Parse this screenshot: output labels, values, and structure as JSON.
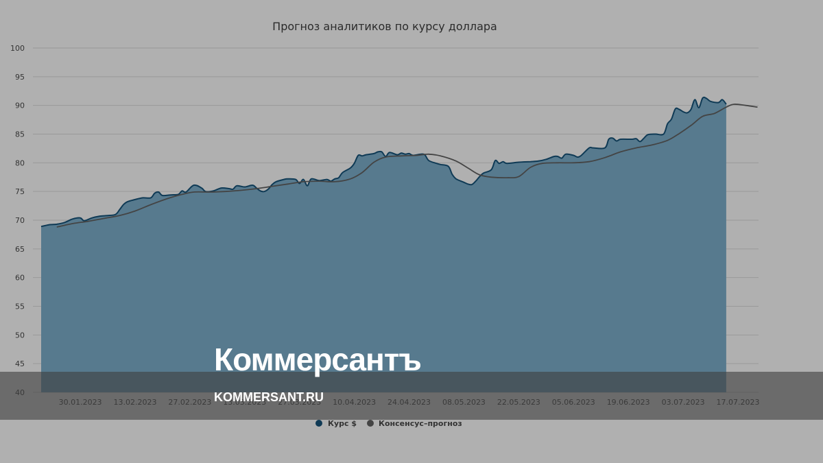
{
  "colors": {
    "background": "#b0b0b0",
    "area_fill": "#577a8e",
    "area_line": "#0f3a55",
    "consensus_line": "#444444",
    "grid": "#999999",
    "watermark_band": "#3d3d3d"
  },
  "watermark": {
    "logo_text": "Коммерсантъ",
    "site_text": "KOMMERSANT.RU"
  },
  "chart_data": {
    "type": "area",
    "title": "Прогноз аналитиков по курсу доллара",
    "xlabel": "",
    "ylabel": "",
    "ylim": [
      40,
      100
    ],
    "yticks": [
      40,
      45,
      50,
      55,
      60,
      65,
      70,
      75,
      80,
      85,
      90,
      95,
      100
    ],
    "grid": true,
    "legend_position": "bottom-center",
    "x_ticks": [
      "30.01.2023",
      "13.02.2023",
      "27.02.2023",
      "13.03.2023",
      "27.03.2023",
      "10.04.2023",
      "24.04.2023",
      "08.05.2023",
      "22.05.2023",
      "05.06.2023",
      "19.06.2023",
      "03.07.2023",
      "17.07.2023"
    ],
    "series": [
      {
        "name": "Курс $",
        "type": "area",
        "color": "#0f3a55",
        "points": [
          [
            "2023-01-20",
            68.9
          ],
          [
            "2023-01-22",
            69.2
          ],
          [
            "2023-01-24",
            69.3
          ],
          [
            "2023-01-26",
            69.6
          ],
          [
            "2023-01-28",
            70.2
          ],
          [
            "2023-01-30",
            70.4
          ],
          [
            "2023-01-31",
            69.9
          ],
          [
            "2023-02-02",
            70.4
          ],
          [
            "2023-02-04",
            70.7
          ],
          [
            "2023-02-06",
            70.8
          ],
          [
            "2023-02-08",
            71.0
          ],
          [
            "2023-02-09",
            71.8
          ],
          [
            "2023-02-10",
            72.7
          ],
          [
            "2023-02-11",
            73.2
          ],
          [
            "2023-02-13",
            73.6
          ],
          [
            "2023-02-15",
            73.9
          ],
          [
            "2023-02-17",
            73.9
          ],
          [
            "2023-02-18",
            74.7
          ],
          [
            "2023-02-19",
            74.9
          ],
          [
            "2023-02-20",
            74.3
          ],
          [
            "2023-02-22",
            74.4
          ],
          [
            "2023-02-24",
            74.5
          ],
          [
            "2023-02-25",
            75.1
          ],
          [
            "2023-02-26",
            74.9
          ],
          [
            "2023-02-28",
            76.1
          ],
          [
            "2023-03-02",
            75.6
          ],
          [
            "2023-03-03",
            75.0
          ],
          [
            "2023-03-05",
            75.1
          ],
          [
            "2023-03-07",
            75.6
          ],
          [
            "2023-03-09",
            75.5
          ],
          [
            "2023-03-10",
            75.4
          ],
          [
            "2023-03-11",
            76.0
          ],
          [
            "2023-03-13",
            75.8
          ],
          [
            "2023-03-15",
            76.1
          ],
          [
            "2023-03-16",
            75.6
          ],
          [
            "2023-03-17",
            75.1
          ],
          [
            "2023-03-18",
            75.0
          ],
          [
            "2023-03-19",
            75.4
          ],
          [
            "2023-03-20",
            76.2
          ],
          [
            "2023-03-21",
            76.7
          ],
          [
            "2023-03-23",
            77.1
          ],
          [
            "2023-03-24",
            77.2
          ],
          [
            "2023-03-26",
            77.1
          ],
          [
            "2023-03-27",
            76.4
          ],
          [
            "2023-03-28",
            77.1
          ],
          [
            "2023-03-29",
            76.0
          ],
          [
            "2023-03-30",
            77.2
          ],
          [
            "2023-04-01",
            76.9
          ],
          [
            "2023-04-03",
            77.1
          ],
          [
            "2023-04-04",
            76.8
          ],
          [
            "2023-04-05",
            77.2
          ],
          [
            "2023-04-06",
            77.4
          ],
          [
            "2023-04-07",
            78.3
          ],
          [
            "2023-04-09",
            79.1
          ],
          [
            "2023-04-10",
            79.9
          ],
          [
            "2023-04-11",
            81.3
          ],
          [
            "2023-04-12",
            81.2
          ],
          [
            "2023-04-13",
            81.4
          ],
          [
            "2023-04-15",
            81.6
          ],
          [
            "2023-04-16",
            81.9
          ],
          [
            "2023-04-17",
            81.9
          ],
          [
            "2023-04-18",
            81.1
          ],
          [
            "2023-04-19",
            81.8
          ],
          [
            "2023-04-21",
            81.4
          ],
          [
            "2023-04-22",
            81.7
          ],
          [
            "2023-04-23",
            81.5
          ],
          [
            "2023-04-24",
            81.6
          ],
          [
            "2023-04-25",
            81.3
          ],
          [
            "2023-04-27",
            81.5
          ],
          [
            "2023-04-28",
            81.4
          ],
          [
            "2023-04-29",
            80.4
          ],
          [
            "2023-05-01",
            79.9
          ],
          [
            "2023-05-02",
            79.7
          ],
          [
            "2023-05-04",
            79.4
          ],
          [
            "2023-05-05",
            78.0
          ],
          [
            "2023-05-06",
            77.2
          ],
          [
            "2023-05-08",
            76.6
          ],
          [
            "2023-05-09",
            76.3
          ],
          [
            "2023-05-10",
            76.2
          ],
          [
            "2023-05-11",
            76.8
          ],
          [
            "2023-05-12",
            77.6
          ],
          [
            "2023-05-13",
            78.2
          ],
          [
            "2023-05-15",
            78.8
          ],
          [
            "2023-05-16",
            80.4
          ],
          [
            "2023-05-17",
            79.9
          ],
          [
            "2023-05-18",
            80.2
          ],
          [
            "2023-05-19",
            79.9
          ],
          [
            "2023-05-22",
            80.1
          ],
          [
            "2023-05-25",
            80.2
          ],
          [
            "2023-05-27",
            80.3
          ],
          [
            "2023-05-29",
            80.6
          ],
          [
            "2023-05-31",
            81.1
          ],
          [
            "2023-06-01",
            81.1
          ],
          [
            "2023-06-02",
            80.8
          ],
          [
            "2023-06-03",
            81.5
          ],
          [
            "2023-06-05",
            81.3
          ],
          [
            "2023-06-06",
            81.0
          ],
          [
            "2023-06-07",
            81.3
          ],
          [
            "2023-06-09",
            82.6
          ],
          [
            "2023-06-10",
            82.6
          ],
          [
            "2023-06-13",
            82.6
          ],
          [
            "2023-06-14",
            84.1
          ],
          [
            "2023-06-15",
            84.3
          ],
          [
            "2023-06-16",
            83.8
          ],
          [
            "2023-06-17",
            84.1
          ],
          [
            "2023-06-20",
            84.1
          ],
          [
            "2023-06-21",
            84.2
          ],
          [
            "2023-06-22",
            83.7
          ],
          [
            "2023-06-23",
            84.3
          ],
          [
            "2023-06-24",
            84.9
          ],
          [
            "2023-06-26",
            85.0
          ],
          [
            "2023-06-28",
            85.0
          ],
          [
            "2023-06-29",
            86.8
          ],
          [
            "2023-06-30",
            87.6
          ],
          [
            "2023-07-01",
            89.4
          ],
          [
            "2023-07-02",
            89.3
          ],
          [
            "2023-07-03",
            88.9
          ],
          [
            "2023-07-04",
            88.7
          ],
          [
            "2023-07-05",
            89.3
          ],
          [
            "2023-07-06",
            91.0
          ],
          [
            "2023-07-07",
            89.6
          ],
          [
            "2023-07-08",
            91.3
          ],
          [
            "2023-07-09",
            91.2
          ],
          [
            "2023-07-10",
            90.7
          ],
          [
            "2023-07-12",
            90.5
          ],
          [
            "2023-07-13",
            91.0
          ],
          [
            "2023-07-14",
            90.2
          ]
        ]
      },
      {
        "name": "Консенсус–прогноз",
        "type": "line",
        "color": "#444444",
        "points": [
          [
            "2023-01-24",
            68.8
          ],
          [
            "2023-01-28",
            69.4
          ],
          [
            "2023-02-01",
            69.8
          ],
          [
            "2023-02-05",
            70.3
          ],
          [
            "2023-02-09",
            70.8
          ],
          [
            "2023-02-13",
            71.6
          ],
          [
            "2023-02-17",
            72.7
          ],
          [
            "2023-02-21",
            73.7
          ],
          [
            "2023-02-25",
            74.5
          ],
          [
            "2023-02-28",
            74.9
          ],
          [
            "2023-03-04",
            74.9
          ],
          [
            "2023-03-08",
            75.0
          ],
          [
            "2023-03-12",
            75.2
          ],
          [
            "2023-03-16",
            75.5
          ],
          [
            "2023-03-20",
            75.9
          ],
          [
            "2023-03-24",
            76.3
          ],
          [
            "2023-03-28",
            76.7
          ],
          [
            "2023-04-01",
            76.8
          ],
          [
            "2023-04-05",
            76.7
          ],
          [
            "2023-04-09",
            77.2
          ],
          [
            "2023-04-12",
            78.3
          ],
          [
            "2023-04-15",
            80.1
          ],
          [
            "2023-04-18",
            81.0
          ],
          [
            "2023-04-22",
            81.2
          ],
          [
            "2023-04-26",
            81.3
          ],
          [
            "2023-04-29",
            81.5
          ],
          [
            "2023-05-02",
            81.2
          ],
          [
            "2023-05-06",
            80.3
          ],
          [
            "2023-05-09",
            79.1
          ],
          [
            "2023-05-12",
            77.9
          ],
          [
            "2023-05-15",
            77.5
          ],
          [
            "2023-05-19",
            77.4
          ],
          [
            "2023-05-22",
            77.6
          ],
          [
            "2023-05-25",
            79.2
          ],
          [
            "2023-05-28",
            79.9
          ],
          [
            "2023-06-01",
            80.0
          ],
          [
            "2023-06-05",
            80.0
          ],
          [
            "2023-06-09",
            80.2
          ],
          [
            "2023-06-13",
            80.9
          ],
          [
            "2023-06-17",
            81.9
          ],
          [
            "2023-06-21",
            82.6
          ],
          [
            "2023-06-25",
            83.1
          ],
          [
            "2023-06-29",
            83.9
          ],
          [
            "2023-07-02",
            85.1
          ],
          [
            "2023-07-05",
            86.5
          ],
          [
            "2023-07-08",
            88.1
          ],
          [
            "2023-07-11",
            88.6
          ],
          [
            "2023-07-14",
            89.7
          ],
          [
            "2023-07-16",
            90.2
          ],
          [
            "2023-07-19",
            90.0
          ],
          [
            "2023-07-22",
            89.7
          ]
        ]
      }
    ]
  }
}
